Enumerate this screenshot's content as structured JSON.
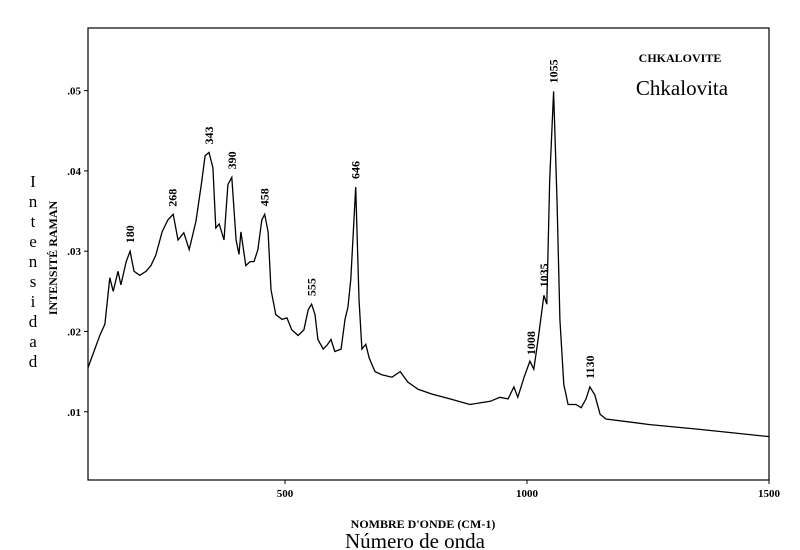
{
  "chart_data": {
    "type": "line",
    "title": "CHKALOVITE",
    "subtitle": "Chkalovita",
    "y_label": "INTENSITÉ RAMAN",
    "y_label_2": "Intensidad",
    "x_label": "NOMBRE D'ONDE (CM-1)",
    "x_label_2": "Número de onda",
    "color": "#000000",
    "x": [
      93,
      107,
      118,
      128,
      138,
      145,
      155,
      161,
      172,
      180,
      188,
      200,
      213,
      223,
      233,
      246,
      258,
      269,
      279,
      291,
      302,
      316,
      327,
      335,
      343,
      351,
      357,
      364,
      374,
      382,
      390,
      399,
      405,
      409,
      419,
      428,
      436,
      444,
      452,
      458,
      465,
      471,
      481,
      494,
      504,
      514,
      527,
      539,
      548,
      555,
      562,
      568,
      579,
      587,
      595,
      603,
      616,
      624,
      630,
      636,
      646,
      653,
      659,
      667,
      674,
      686,
      700,
      721,
      738,
      754,
      775,
      804,
      841,
      882,
      924,
      944,
      961,
      973,
      981,
      994,
      1006,
      1014,
      1023,
      1035,
      1041,
      1047,
      1055,
      1062,
      1068,
      1076,
      1085,
      1101,
      1112,
      1122,
      1130,
      1140,
      1151,
      1163,
      1254,
      1357,
      1500
    ],
    "values": [
      0.0155,
      0.0178,
      0.0196,
      0.0209,
      0.0267,
      0.025,
      0.0275,
      0.0258,
      0.0287,
      0.03,
      0.0275,
      0.027,
      0.0275,
      0.0282,
      0.0295,
      0.0324,
      0.0339,
      0.0346,
      0.0314,
      0.0323,
      0.0302,
      0.0337,
      0.0383,
      0.0419,
      0.0423,
      0.0404,
      0.0329,
      0.0334,
      0.0314,
      0.0383,
      0.0392,
      0.0314,
      0.0296,
      0.0324,
      0.0282,
      0.0287,
      0.0287,
      0.0302,
      0.0339,
      0.0346,
      0.0324,
      0.0252,
      0.0221,
      0.0215,
      0.0217,
      0.0202,
      0.0195,
      0.0202,
      0.0227,
      0.0234,
      0.0221,
      0.019,
      0.0178,
      0.0183,
      0.019,
      0.0175,
      0.0178,
      0.0215,
      0.023,
      0.0265,
      0.038,
      0.024,
      0.0178,
      0.0184,
      0.0167,
      0.015,
      0.0146,
      0.0143,
      0.015,
      0.0137,
      0.0128,
      0.0122,
      0.0116,
      0.0109,
      0.0113,
      0.0118,
      0.0116,
      0.0131,
      0.0118,
      0.0143,
      0.0163,
      0.0153,
      0.019,
      0.0245,
      0.0234,
      0.0389,
      0.0499,
      0.0364,
      0.0215,
      0.0134,
      0.0109,
      0.0109,
      0.0105,
      0.0116,
      0.0131,
      0.0121,
      0.0097,
      0.0091,
      0.0084,
      0.0078,
      0.0069
    ],
    "peak_labels": [
      180,
      268,
      343,
      390,
      458,
      555,
      646,
      1008,
      1035,
      1055,
      1130
    ],
    "xlim": [
      93,
      1500
    ],
    "xticks": [
      500,
      1000,
      1500
    ],
    "ylim": [
      0.0015,
      0.0578
    ],
    "yticks": [
      {
        "value": 0.01,
        "label": ".01"
      },
      {
        "value": 0.02,
        "label": ".02"
      },
      {
        "value": 0.03,
        "label": ".03"
      },
      {
        "value": 0.04,
        "label": ".04"
      },
      {
        "value": 0.05,
        "label": ".05"
      }
    ]
  }
}
